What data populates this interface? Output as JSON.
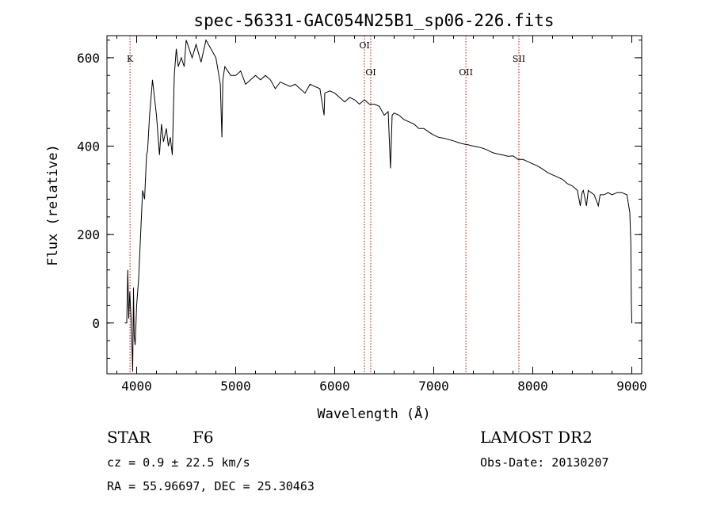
{
  "chart_data": {
    "type": "line",
    "title": "spec-56331-GAC054N25B1_sp06-226.fits",
    "xlabel": "Wavelength (Å)",
    "ylabel": "Flux (relative)",
    "xlim": [
      3700,
      9100
    ],
    "ylim": [
      -115,
      650
    ],
    "x_ticks": [
      4000,
      5000,
      6000,
      7000,
      8000,
      9000
    ],
    "y_ticks": [
      0,
      200,
      400,
      600
    ],
    "x_tick_labels": [
      "4000",
      "5000",
      "6000",
      "7000",
      "8000",
      "9000"
    ],
    "y_tick_labels": [
      "0",
      "200",
      "400",
      "600"
    ],
    "grid": false,
    "line_color": "#000000",
    "marker_color": "#cc0000",
    "series": [
      {
        "x": [
          3880,
          3900,
          3910,
          3920,
          3930,
          3945,
          3960,
          3968,
          3975,
          3985,
          4000,
          4020,
          4040,
          4060,
          4080,
          4100,
          4110,
          4130,
          4160,
          4200,
          4230,
          4250,
          4270,
          4300,
          4320,
          4340,
          4360,
          4380,
          4400,
          4420,
          4450,
          4480,
          4500,
          4530,
          4560,
          4600,
          4650,
          4700,
          4750,
          4800,
          4830,
          4845,
          4861,
          4870,
          4890,
          4920,
          4950,
          5000,
          5050,
          5100,
          5150,
          5200,
          5250,
          5300,
          5350,
          5400,
          5450,
          5500,
          5550,
          5600,
          5650,
          5700,
          5750,
          5800,
          5850,
          5893,
          5900,
          5950,
          6000,
          6050,
          6100,
          6150,
          6200,
          6250,
          6300,
          6350,
          6400,
          6450,
          6500,
          6540,
          6563,
          6580,
          6600,
          6650,
          6700,
          6750,
          6800,
          6850,
          6900,
          6950,
          7000,
          7050,
          7100,
          7150,
          7200,
          7250,
          7300,
          7350,
          7400,
          7450,
          7500,
          7550,
          7600,
          7650,
          7700,
          7750,
          7800,
          7850,
          7900,
          7950,
          8000,
          8050,
          8100,
          8150,
          8200,
          8250,
          8300,
          8350,
          8400,
          8450,
          8480,
          8498,
          8510,
          8542,
          8560,
          8590,
          8620,
          8662,
          8680,
          8720,
          8760,
          8800,
          8850,
          8900,
          8950,
          8980,
          8990,
          8995,
          9000,
          9005
        ],
        "y": [
          0,
          0,
          120,
          10,
          70,
          5,
          -110,
          80,
          -30,
          -50,
          40,
          100,
          200,
          300,
          280,
          380,
          390,
          470,
          550,
          470,
          380,
          450,
          410,
          440,
          400,
          420,
          380,
          560,
          620,
          580,
          600,
          580,
          640,
          620,
          600,
          630,
          590,
          640,
          620,
          600,
          560,
          540,
          420,
          550,
          580,
          570,
          560,
          560,
          570,
          540,
          550,
          560,
          550,
          560,
          550,
          530,
          545,
          540,
          535,
          540,
          530,
          520,
          540,
          535,
          530,
          470,
          520,
          525,
          520,
          510,
          500,
          510,
          505,
          495,
          505,
          495,
          495,
          490,
          470,
          478,
          350,
          470,
          475,
          470,
          460,
          455,
          450,
          440,
          440,
          432,
          425,
          420,
          418,
          415,
          412,
          408,
          405,
          403,
          400,
          398,
          395,
          390,
          385,
          382,
          380,
          377,
          378,
          370,
          370,
          365,
          360,
          355,
          348,
          340,
          335,
          330,
          325,
          315,
          310,
          300,
          265,
          295,
          300,
          265,
          300,
          295,
          290,
          265,
          290,
          290,
          295,
          290,
          295,
          295,
          290,
          250,
          180,
          50,
          0,
          0
        ]
      }
    ],
    "spectral_lines": [
      {
        "label": "K",
        "x": 3933,
        "label_level": "high"
      },
      {
        "label": "OI",
        "x": 6300,
        "label_level": "top"
      },
      {
        "label": "OI",
        "x": 6364,
        "label_level": "mid"
      },
      {
        "label": "OII",
        "x": 7325,
        "label_level": "mid"
      },
      {
        "label": "SII",
        "x": 7860,
        "label_level": "high"
      }
    ]
  },
  "info": {
    "class": "STAR",
    "subclass": "F6",
    "cz": "cz = 0.9 ± 22.5 km/s",
    "radec": "RA =  55.96697, DEC =  25.30463",
    "survey": "LAMOST DR2",
    "obsdate": "Obs-Date: 20130207"
  }
}
